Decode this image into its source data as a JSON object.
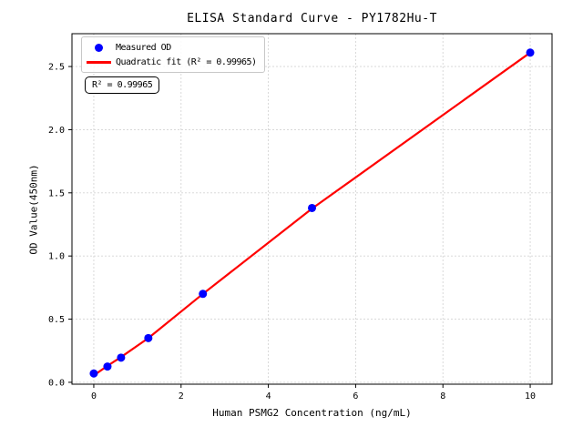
{
  "chart_data": {
    "type": "scatter",
    "title": "ELISA Standard Curve - PY1782Hu-T",
    "xlabel": "Human PSMG2 Concentration (ng/mL)",
    "ylabel": "OD Value(450nm)",
    "r_squared": 0.99965,
    "xlim": [
      -0.5,
      10.5
    ],
    "ylim": [
      -0.015,
      2.76
    ],
    "xticks": {
      "values": [
        0,
        2,
        4,
        6,
        8,
        10
      ],
      "labels": [
        "0",
        "2",
        "4",
        "6",
        "8",
        "10"
      ]
    },
    "yticks": {
      "values": [
        0,
        0.5,
        1,
        1.5,
        2,
        2.5
      ],
      "labels": [
        "0.0",
        "0.5",
        "1.0",
        "1.5",
        "2.0",
        "2.5"
      ]
    },
    "grid": true,
    "grid_color": "#d4d4d4",
    "legend_position": "upper left",
    "series": [
      {
        "name": "Measured OD",
        "type": "scatter",
        "color": "#0000ff",
        "x": [
          0,
          0.313,
          0.625,
          1.25,
          2.5,
          5,
          10
        ],
        "y": [
          0.07,
          0.125,
          0.195,
          0.35,
          0.7,
          1.38,
          2.61
        ]
      },
      {
        "name": "Quadratic fit (R² = 0.99965)",
        "type": "line",
        "color": "#ff0000",
        "x": [
          0,
          0.313,
          0.625,
          1.25,
          2.5,
          5,
          10
        ],
        "y": [
          0.055,
          0.13,
          0.2,
          0.35,
          0.7,
          1.375,
          2.61
        ]
      }
    ]
  },
  "legend": {
    "items": [
      {
        "label": "Measured OD",
        "marker": "dot",
        "color": "#0000ff"
      },
      {
        "label": "Quadratic fit (R² = 0.99965)",
        "marker": "line",
        "color": "#ff0000"
      }
    ]
  },
  "annotation_box": {
    "text": "R² = 0.99965"
  }
}
